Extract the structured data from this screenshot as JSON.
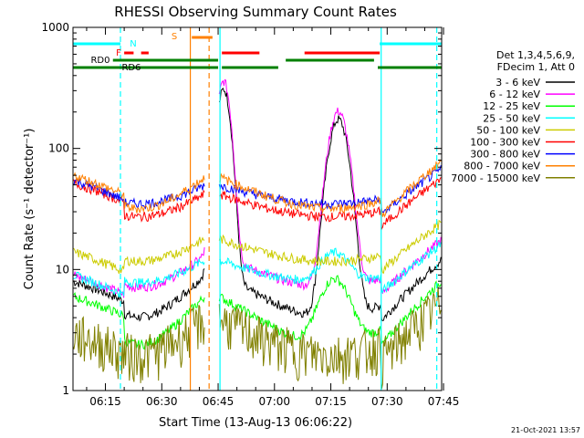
{
  "chart_data": {
    "type": "line",
    "title": "RHESSI Observing Summary Count Rates",
    "xlabel": "Start Time (13-Aug-13 06:06:22)",
    "ylabel": "Count Rate (s⁻¹ detector⁻¹)",
    "yscale": "log",
    "ylim": [
      1,
      1000
    ],
    "xlim_minutes": [
      6.37,
      104.5
    ],
    "x_ticks": [
      {
        "label": "06:15",
        "min": 15
      },
      {
        "label": "06:30",
        "min": 30
      },
      {
        "label": "06:45",
        "min": 45
      },
      {
        "label": "07:00",
        "min": 60
      },
      {
        "label": "07:15",
        "min": 75
      },
      {
        "label": "07:30",
        "min": 90
      },
      {
        "label": "07:45",
        "min": 105
      }
    ],
    "y_ticks": [
      {
        "label": "1",
        "v": 1
      },
      {
        "label": "10",
        "v": 10
      },
      {
        "label": "100",
        "v": 100
      },
      {
        "label": "1000",
        "v": 1000
      }
    ],
    "legend_header": [
      "Det 1,3,4,5,6,9,",
      "FDecim 1, Att 0"
    ],
    "series": [
      {
        "name": "3 - 6 keV",
        "color": "#000000"
      },
      {
        "name": "6 - 12 keV",
        "color": "#ff00ff"
      },
      {
        "name": "12 - 25 keV",
        "color": "#00ff00"
      },
      {
        "name": "25 - 50 keV",
        "color": "#00ffff"
      },
      {
        "name": "50 - 100 keV",
        "color": "#cccc00"
      },
      {
        "name": "100 - 300 keV",
        "color": "#ff0000"
      },
      {
        "name": "300 - 800 keV",
        "color": "#0000ff"
      },
      {
        "name": "800 - 7000 keV",
        "color": "#ff8000"
      },
      {
        "name": "7000 - 15000 keV",
        "color": "#808000"
      }
    ],
    "segments": [
      [
        6.37,
        41.5
      ],
      [
        45.3,
        104.5
      ]
    ],
    "flags": {
      "N": {
        "label": "N",
        "color": "#00ffff",
        "intervals": [
          [
            6.37,
            19
          ],
          [
            88,
            104.5
          ]
        ]
      },
      "F": {
        "label": "F",
        "color": "#ff0000",
        "intervals": [
          [
            20,
            22.5
          ],
          [
            24.5,
            26.5
          ],
          [
            46,
            56
          ],
          [
            68,
            88
          ]
        ]
      },
      "S": {
        "label": "S",
        "color": "#ff8000",
        "intervals": [
          [
            38,
            43.5
          ]
        ]
      },
      "RD0": {
        "label": "RD0",
        "color": "#008000",
        "intervals": [
          [
            17,
            45
          ],
          [
            63,
            86.5
          ]
        ]
      },
      "RD6": {
        "label": "RD6",
        "color": "#008000",
        "intervals": [
          [
            6.37,
            45
          ],
          [
            46,
            61
          ],
          [
            87.5,
            104.5
          ]
        ]
      }
    },
    "vlines": [
      {
        "min": 19,
        "color": "#00ffff",
        "style": "dash"
      },
      {
        "min": 45.5,
        "color": "#00ffff",
        "style": "solid"
      },
      {
        "min": 37.6,
        "color": "#ff8000",
        "style": "solid"
      },
      {
        "min": 42.6,
        "color": "#ff8000",
        "style": "dash"
      },
      {
        "min": 88.4,
        "color": "#00ffff",
        "style": "solid"
      },
      {
        "min": 103.2,
        "color": "#00ffff",
        "style": "dash"
      }
    ]
  },
  "footer": {
    "timestamp": "21-Oct-2021 13:57"
  }
}
